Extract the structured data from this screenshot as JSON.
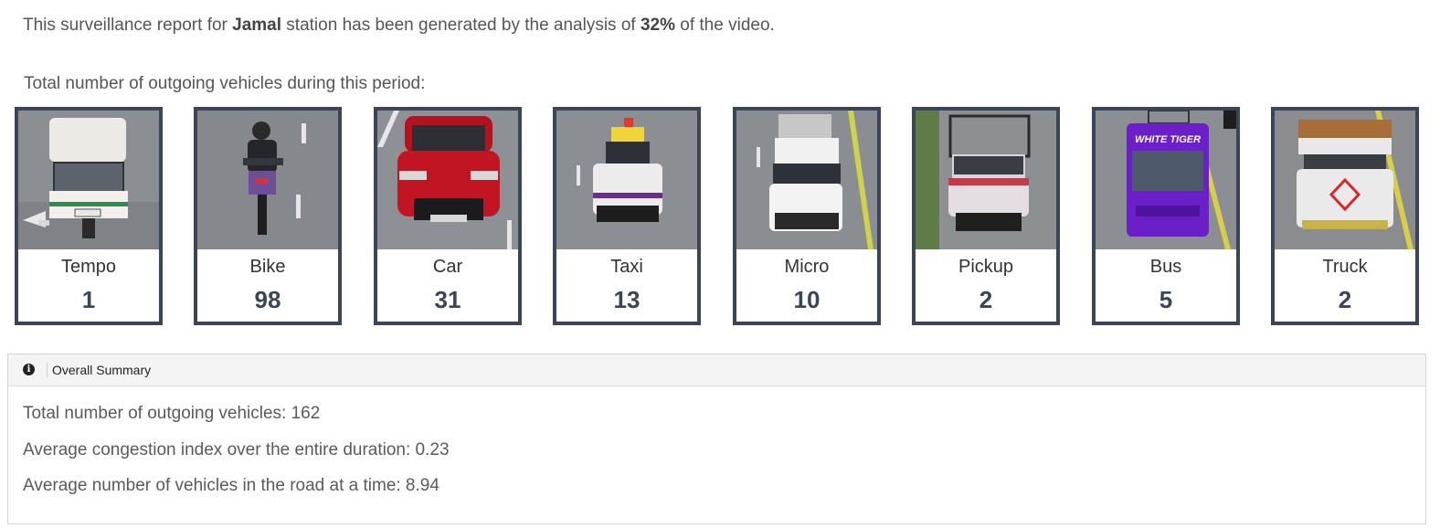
{
  "intro": {
    "prefix": "This surveillance report for ",
    "station": "Jamal",
    "middle": " station has been generated by the analysis of ",
    "percent": "32%",
    "suffix": " of the video."
  },
  "total_heading": "Total number of outgoing vehicles during this period:",
  "vehicles": [
    {
      "label": "Tempo",
      "count": "1",
      "image": "tempo-photo"
    },
    {
      "label": "Bike",
      "count": "98",
      "image": "bike-photo"
    },
    {
      "label": "Car",
      "count": "31",
      "image": "car-photo"
    },
    {
      "label": "Taxi",
      "count": "13",
      "image": "taxi-photo"
    },
    {
      "label": "Micro",
      "count": "10",
      "image": "micro-photo"
    },
    {
      "label": "Pickup",
      "count": "2",
      "image": "pickup-photo"
    },
    {
      "label": "Bus",
      "count": "5",
      "image": "bus-photo"
    },
    {
      "label": "Truck",
      "count": "2",
      "image": "truck-photo"
    }
  ],
  "photo_text": {
    "bus_front": "WHITE TIGER"
  },
  "summary": {
    "title": "Overall Summary",
    "icon": "info-icon",
    "lines": [
      "Total number of outgoing vehicles: 162",
      "Average congestion index over the entire duration: 0.23",
      "Average number of vehicles in the road at a time: 8.94"
    ]
  },
  "colors": {
    "card_border": "#3a4556",
    "text": "#5a5a5a",
    "header_bg": "#f4f4f4"
  }
}
